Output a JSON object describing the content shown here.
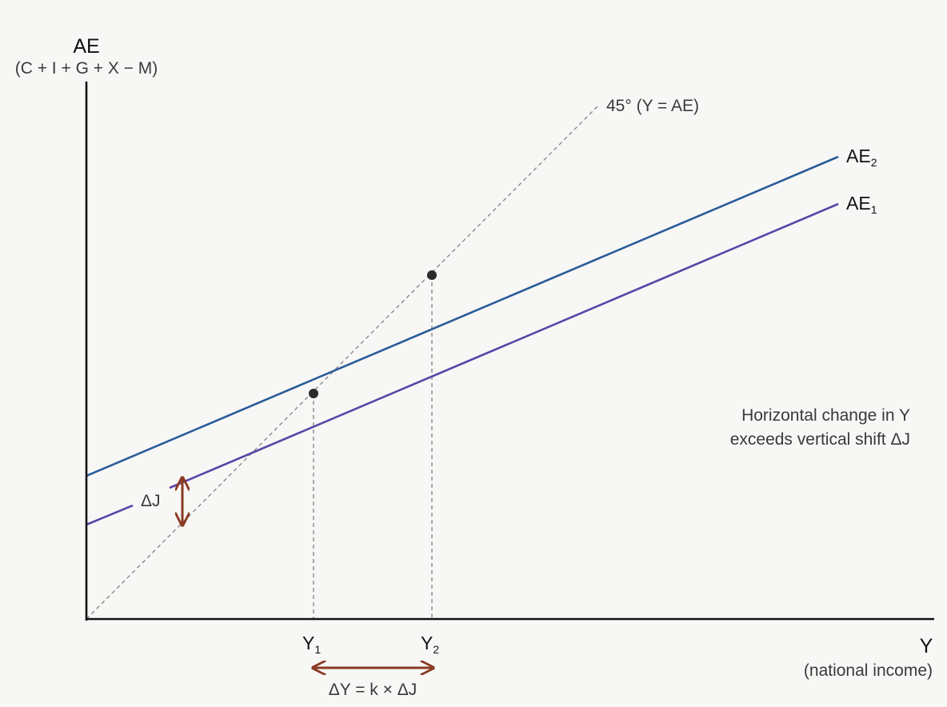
{
  "diagram": {
    "y_axis": {
      "title": "AE",
      "subtitle": "(C + I + G + X − M)"
    },
    "x_axis": {
      "title": "Y",
      "subtitle": "(national income)"
    },
    "line_45": {
      "label": "45° (Y = AE)"
    },
    "curves": [
      {
        "name": "AE",
        "sub": "2",
        "color": "#2a5c9a"
      },
      {
        "name": "AE",
        "sub": "1",
        "color": "#5a45a8"
      }
    ],
    "ticks": [
      {
        "name": "Y",
        "sub": "1"
      },
      {
        "name": "Y",
        "sub": "2"
      }
    ],
    "delta_j": {
      "label": "ΔJ",
      "color": "#8a3a22"
    },
    "delta_y": {
      "label": "ΔY = k × ΔJ",
      "color": "#8a3a22"
    },
    "annotation": {
      "line1": "Horizontal change in Y",
      "line2": "exceeds vertical shift ΔJ"
    },
    "colors": {
      "axis": "#111111",
      "guide": "#8a8a8a",
      "point": "#2b2b2b",
      "background": "#f7f7f5"
    }
  }
}
